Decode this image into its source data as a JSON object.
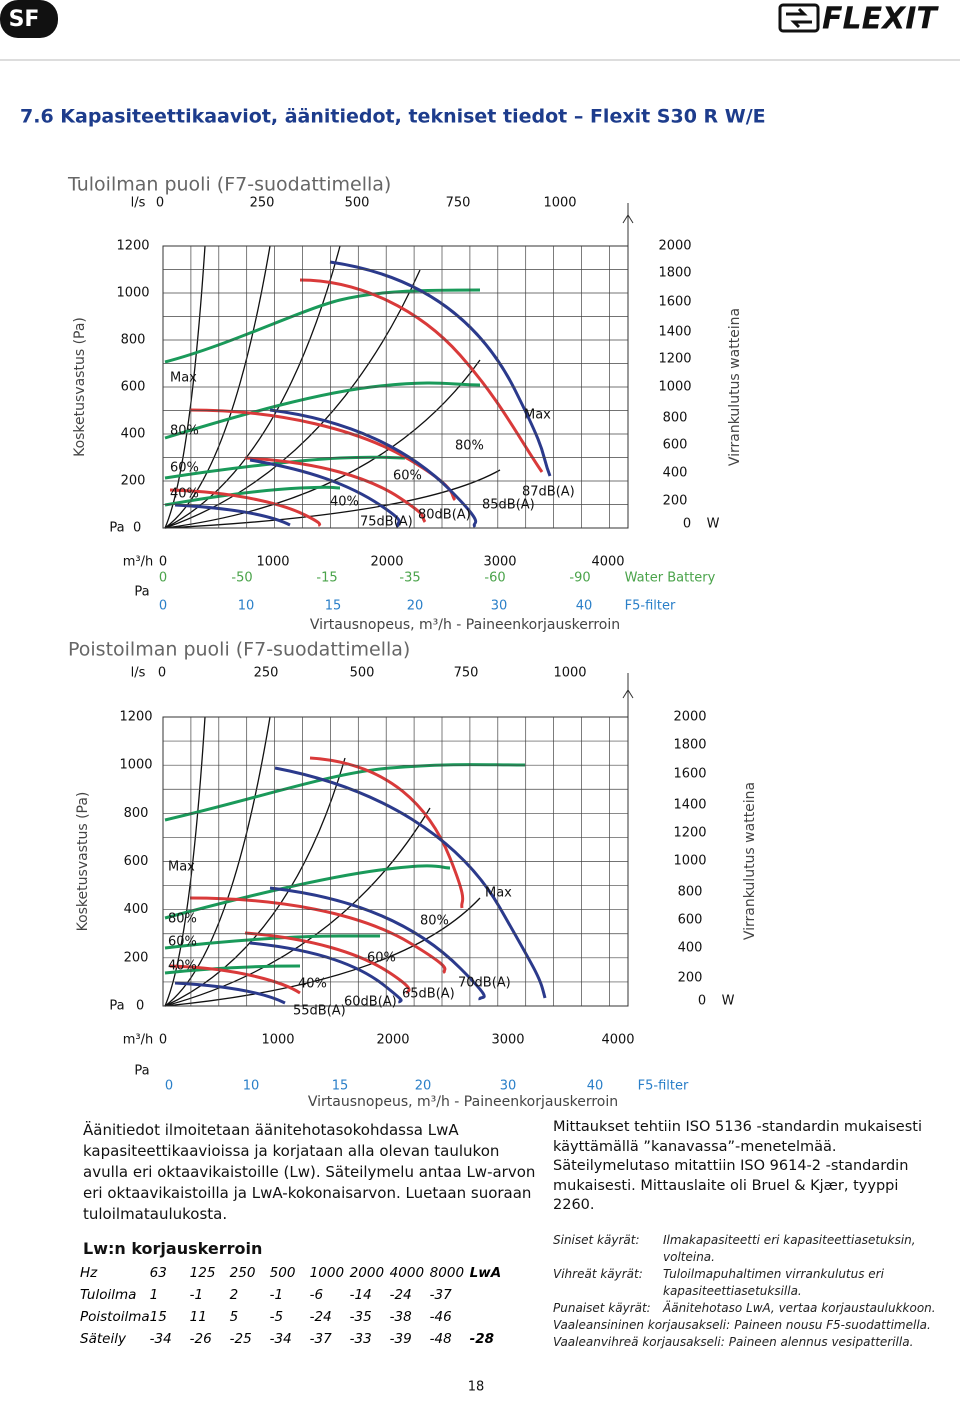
{
  "header": {
    "badge": "SF",
    "brand": "FLEXIT"
  },
  "title": "7.6 Kapasiteettikaaviot, äänitiedot, tekniset tiedot – Flexit S30 R W/E",
  "chart1": {
    "title": "Tuloilman puoli (F7-suodattimella)",
    "ls_unit": "l/s",
    "ls_ticks": [
      "0",
      "250",
      "500",
      "750",
      "1000"
    ],
    "y_title": "Kosketusvastus (Pa)",
    "y_unit": "Pa",
    "y_ticks": [
      "1200",
      "1000",
      "800",
      "600",
      "400",
      "200",
      "0"
    ],
    "right_title": "Virrankulutus watteina",
    "right_unit": "W",
    "right_ticks": [
      "2000",
      "1800",
      "1600",
      "1400",
      "1200",
      "1000",
      "800",
      "600",
      "400",
      "200",
      "0"
    ],
    "x_unit": "m³/h",
    "x_ticks": [
      "0",
      "1000",
      "2000",
      "3000",
      "4000"
    ],
    "water_ticks": [
      "0",
      "-50",
      "-15",
      "-35",
      "-60",
      "-90"
    ],
    "water_label": "Water Battery",
    "corr_unit": "Pa",
    "f5_ticks": [
      "0",
      "10",
      "15",
      "20",
      "30",
      "40"
    ],
    "f5_label": "F5-filter",
    "x_title": "Virtausnopeus, m³/h - Paineenkorjauskerroin",
    "curve_labels": [
      "Max",
      "80%",
      "60%",
      "40%",
      "60%",
      "40%",
      "Max",
      "80%",
      "87dB(A)",
      "85dB(A)",
      "80dB(A)",
      "75dB(A)"
    ]
  },
  "chart2": {
    "title": "Poistoilman puoli (F7-suodattimella)",
    "ls_unit": "l/s",
    "ls_ticks": [
      "0",
      "250",
      "500",
      "750",
      "1000"
    ],
    "y_title": "Kosketusvastus (Pa)",
    "y_unit": "Pa",
    "y_ticks": [
      "1200",
      "1000",
      "800",
      "600",
      "400",
      "200",
      "0"
    ],
    "right_title": "Virrankulutus watteina",
    "right_unit": "W",
    "right_ticks": [
      "2000",
      "1800",
      "1600",
      "1400",
      "1200",
      "1000",
      "800",
      "600",
      "400",
      "200",
      "0"
    ],
    "x_unit": "m³/h",
    "x_ticks": [
      "0",
      "1000",
      "2000",
      "3000",
      "4000"
    ],
    "corr_unit": "Pa",
    "f5_ticks": [
      "0",
      "10",
      "15",
      "20",
      "30",
      "40"
    ],
    "f5_label": "F5-filter",
    "x_title": "Virtausnopeus, m³/h - Paineenkorjauskerroin",
    "curve_labels": [
      "Max",
      "80%",
      "60%",
      "40%",
      "80%",
      "60%",
      "40%",
      "Max",
      "70dB(A)",
      "65dB(A)",
      "60dB(A)",
      "55dB(A)"
    ]
  },
  "sound_text": "Äänitiedot ilmoitetaan äänitehotasokohdassa LwA kapasiteettikaavioissa ja korjataan alla olevan taulukon avulla eri oktaavikaistoille (Lw). Säteilymelu antaa Lw-arvon eri oktaavikaistoilla ja LwA-kokonaisarvon. Luetaan suoraan tuloilmataulukosta.",
  "table": {
    "title": "Lw:n korjauskerroin",
    "rows": [
      [
        "Hz",
        "63",
        "125",
        "250",
        "500",
        "1000",
        "2000",
        "4000",
        "8000",
        "LwA"
      ],
      [
        "Tuloilma",
        "1",
        "-1",
        "2",
        "-1",
        "-6",
        "-14",
        "-24",
        "-37",
        ""
      ],
      [
        "Poistoilma",
        "15",
        "11",
        "5",
        "-5",
        "-24",
        "-35",
        "-38",
        "-46",
        ""
      ],
      [
        "Säteily",
        "-34",
        "-26",
        "-25",
        "-34",
        "-37",
        "-33",
        "-39",
        "-48",
        "-28"
      ]
    ]
  },
  "measure_text": "Mittaukset tehtiin ISO 5136 -standardin mukaisesti käyttämällä ”kanavassa”-menetelmää. Säteilymelutaso mitattiin ISO 9614-2 -standardin mukaisesti. Mittauslaite oli Bruel & Kjær, tyyppi 2260.",
  "notes": [
    [
      "Siniset käyrät:",
      "Ilmakapasiteetti eri kapasiteettiasetuksin, volteina."
    ],
    [
      "Vihreät käyrät:",
      "Tuloilmapuhaltimen virrankulutus eri kapasiteettiasetuksilla."
    ],
    [
      "Punaiset käyrät:",
      "Äänitehotaso LwA, vertaa korjaustaulukkoon."
    ],
    [
      "Vaaleansininen korjausakseli:",
      "Paineen nousu F5-suodattimella."
    ],
    [
      "Vaaleanvihreä korjausakseli:",
      "Paineen alennus vesipatterilla."
    ]
  ],
  "page_number": "18"
}
